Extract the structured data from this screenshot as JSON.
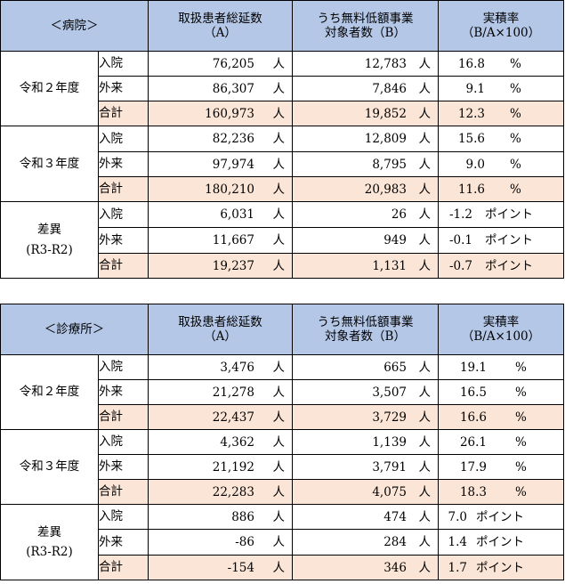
{
  "tables": [
    {
      "corner": "＜病院＞",
      "headers": {
        "col1": [
          "取扱患者総延数",
          "（A）"
        ],
        "col2": [
          "うち無料低額事業",
          "対象者数（B）"
        ],
        "col3": [
          "実積率",
          "（B/A×100）"
        ]
      },
      "groups": [
        {
          "label": "令和２年度",
          "rows": [
            {
              "cat": "入院",
              "a": "76,205",
              "a_unit": "人",
              "b": "12,783",
              "b_unit": "人",
              "r": "16.8",
              "r_unit": "%"
            },
            {
              "cat": "外来",
              "a": "86,307",
              "a_unit": "人",
              "b": "7,846",
              "b_unit": "人",
              "r": "9.1",
              "r_unit": "%"
            },
            {
              "cat": "合計",
              "a": "160,973",
              "a_unit": "人",
              "b": "19,852",
              "b_unit": "人",
              "r": "12.3",
              "r_unit": "%"
            }
          ]
        },
        {
          "label": "令和３年度",
          "rows": [
            {
              "cat": "入院",
              "a": "82,236",
              "a_unit": "人",
              "b": "12,809",
              "b_unit": "人",
              "r": "15.6",
              "r_unit": "%"
            },
            {
              "cat": "外来",
              "a": "97,974",
              "a_unit": "人",
              "b": "8,795",
              "b_unit": "人",
              "r": "9.0",
              "r_unit": "%"
            },
            {
              "cat": "合計",
              "a": "180,210",
              "a_unit": "人",
              "b": "20,983",
              "b_unit": "人",
              "r": "11.6",
              "r_unit": "%"
            }
          ]
        },
        {
          "label": "差異",
          "sublabel": "(R3-R2)",
          "rows": [
            {
              "cat": "入院",
              "a": "6,031",
              "a_unit": "人",
              "b": "26",
              "b_unit": "人",
              "r": "-1.2",
              "r_unit": "ポイント"
            },
            {
              "cat": "外来",
              "a": "11,667",
              "a_unit": "人",
              "b": "949",
              "b_unit": "人",
              "r": "-0.1",
              "r_unit": "ポイント"
            },
            {
              "cat": "合計",
              "a": "19,237",
              "a_unit": "人",
              "b": "1,131",
              "b_unit": "人",
              "r": "-0.7",
              "r_unit": "ポイント"
            }
          ]
        }
      ]
    },
    {
      "corner": "＜診療所＞",
      "headers": {
        "col1": [
          "取扱患者総延数",
          "（A）"
        ],
        "col2": [
          "うち無料低額事業",
          "対象者数（B）"
        ],
        "col3": [
          "実積率",
          "（B/A×100）"
        ]
      },
      "groups": [
        {
          "label": "令和２年度",
          "rows": [
            {
              "cat": "入院",
              "a": "3,476",
              "a_unit": "人",
              "b": "665",
              "b_unit": "人",
              "r": "19.1",
              "r_unit": "%"
            },
            {
              "cat": "外来",
              "a": "21,278",
              "a_unit": "人",
              "b": "3,507",
              "b_unit": "人",
              "r": "16.5",
              "r_unit": "%"
            },
            {
              "cat": "合計",
              "a": "22,437",
              "a_unit": "人",
              "b": "3,729",
              "b_unit": "人",
              "r": "16.6",
              "r_unit": "%"
            }
          ]
        },
        {
          "label": "令和３年度",
          "rows": [
            {
              "cat": "入院",
              "a": "4,362",
              "a_unit": "人",
              "b": "1,139",
              "b_unit": "人",
              "r": "26.1",
              "r_unit": "%"
            },
            {
              "cat": "外来",
              "a": "21,192",
              "a_unit": "人",
              "b": "3,791",
              "b_unit": "人",
              "r": "17.9",
              "r_unit": "%"
            },
            {
              "cat": "合計",
              "a": "22,283",
              "a_unit": "人",
              "b": "4,075",
              "b_unit": "人",
              "r": "18.3",
              "r_unit": "%"
            }
          ]
        },
        {
          "label": "差異",
          "sublabel": "(R3-R2)",
          "rows": [
            {
              "cat": "入院",
              "a": "886",
              "a_unit": "人",
              "b": "474",
              "b_unit": "人",
              "r": "7.0",
              "r_unit": "ポイント"
            },
            {
              "cat": "外来",
              "a": "-86",
              "a_unit": "人",
              "b": "284",
              "b_unit": "人",
              "r": "1.4",
              "r_unit": "ポイント"
            },
            {
              "cat": "合計",
              "a": "-154",
              "a_unit": "人",
              "b": "346",
              "b_unit": "人",
              "r": "1.7",
              "r_unit": "ポイント"
            }
          ]
        }
      ]
    }
  ]
}
